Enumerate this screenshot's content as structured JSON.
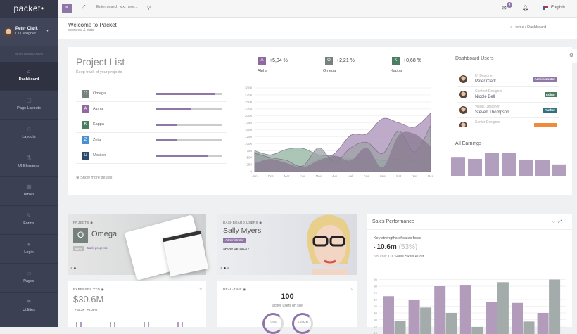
{
  "app": {
    "logo": "packet•"
  },
  "user": {
    "name": "Peter Clark",
    "role": "UI Designer"
  },
  "sidebar": {
    "section": "MAIN NAVIGATION",
    "items": [
      {
        "label": "Dashboard",
        "icon": "⌂",
        "active": true
      },
      {
        "label": "Page Layouts",
        "icon": "▢"
      },
      {
        "label": "Layouts",
        "icon": "◇"
      },
      {
        "label": "UI Elements",
        "icon": "⚗"
      },
      {
        "label": "Tables",
        "icon": "▦"
      },
      {
        "label": "Forms",
        "icon": "✎"
      },
      {
        "label": "Login",
        "icon": "●"
      },
      {
        "label": "Pages",
        "icon": "▭"
      },
      {
        "label": "Utilities",
        "icon": "☂"
      }
    ]
  },
  "topbar": {
    "search_placeholder": "Enter search text here...",
    "mail_count": "4",
    "language": "English"
  },
  "header": {
    "title": "Welcome to Packet",
    "subtitle": "overview & stats",
    "breadcrumb": [
      "Home",
      "Dashboard"
    ]
  },
  "project_list": {
    "title": "Project List",
    "subtitle": "Keep track of your projects",
    "show_more": "Show more details",
    "projects": [
      {
        "letter": "O",
        "name": "Omega",
        "color": "#76807d",
        "progress": 0.88
      },
      {
        "letter": "A",
        "name": "Alpha",
        "color": "#8f6a9e",
        "progress": 0.53
      },
      {
        "letter": "K",
        "name": "Kappa",
        "color": "#4b7d63",
        "progress": 0.32
      },
      {
        "letter": "Z",
        "name": "Zeta",
        "color": "#4a90cf",
        "progress": 0.32
      },
      {
        "letter": "U",
        "name": "Upsilon",
        "color": "#2c4a6e",
        "progress": 0.78
      }
    ]
  },
  "stats": [
    {
      "letter": "A",
      "value": "+5,04 %",
      "name": "Alpha",
      "color": "#8f6a9e"
    },
    {
      "letter": "O",
      "value": "+2,21 %",
      "name": "Omega",
      "color": "#76807d"
    },
    {
      "letter": "K",
      "value": "+0,68 %",
      "name": "Kappa",
      "color": "#4b7d63"
    }
  ],
  "chart_data": [
    {
      "type": "area",
      "categories": [
        "Jan",
        "Feb",
        "Mar",
        "Apr",
        "May",
        "Jun",
        "Jul",
        "Aug",
        "Sep",
        "Oct",
        "Nov",
        "Dec"
      ],
      "ylim": [
        0,
        3000
      ],
      "yticks": [
        0,
        250,
        500,
        750,
        1000,
        1250,
        1500,
        1750,
        2000,
        2250,
        2500,
        2750,
        3000
      ],
      "grid": true,
      "series": [
        {
          "color": "#b7a1c3",
          "values": [
            700,
            450,
            300,
            200,
            450,
            650,
            1300,
            1350,
            1900,
            1750,
            1600,
            2100
          ]
        },
        {
          "color": "#8fb39f",
          "values": [
            750,
            600,
            800,
            830,
            600,
            550,
            450,
            500,
            400,
            450,
            400,
            500
          ]
        },
        {
          "color": "#9da3a5",
          "values": [
            650,
            500,
            400,
            200,
            850,
            350,
            850,
            1050,
            650,
            1450,
            700,
            1650
          ]
        },
        {
          "color": "#8a7a92",
          "values": [
            300,
            450,
            300,
            150,
            400,
            550,
            400,
            850,
            150,
            1300,
            1350,
            900
          ]
        }
      ]
    },
    {
      "type": "bar",
      "title": "All Earnings",
      "values": [
        78,
        70,
        96,
        96,
        67,
        66,
        47
      ],
      "color": "#b29fbe"
    },
    {
      "type": "bar",
      "ylim": [
        0,
        90
      ],
      "yticks": [
        10,
        20,
        30,
        40,
        50,
        60,
        70,
        80,
        90
      ],
      "grid": true,
      "series": [
        {
          "color": "#b29bbb",
          "values": [
            65,
            59,
            80,
            81,
            56,
            55,
            40
          ]
        },
        {
          "color": "#a3abab",
          "values": [
            28,
            48,
            40,
            19,
            86,
            27,
            90
          ]
        }
      ]
    }
  ],
  "dashboard_users": {
    "title": "Dashboard Users",
    "users": [
      {
        "role": "UI Designer",
        "name": "Peter Clark",
        "badge": "Administrator",
        "color": "#8f76a8"
      },
      {
        "role": "Content Designer",
        "name": "Nicole Bell",
        "badge": "Editor",
        "color": "#4b7d63"
      },
      {
        "role": "Visual Designer",
        "name": "Steven Thompson",
        "badge": "Author",
        "color": "#35707d"
      },
      {
        "role": "Senior Designer",
        "name": "",
        "badge": "",
        "color": "#f08a3c"
      }
    ]
  },
  "earnings": {
    "title": "All Earnings"
  },
  "projects_card": {
    "label": "PRJECTS ◉",
    "letter": "O",
    "name": "Omega",
    "percent": "65%",
    "link": "track progress"
  },
  "users_card": {
    "label": "DASHBOARD USERS ◉",
    "name": "Sally Myers",
    "badge": "Administrator",
    "show": "SHOW DETAILS ›"
  },
  "sales": {
    "title": "Sales Performance",
    "key": "Key strengths of sales force",
    "value": "10.6m",
    "pct": "(53%)",
    "source_label": "Source:",
    "source": "CT Sales Skills Audit"
  },
  "expenses": {
    "label": "EXPENSES YTD ◉",
    "value": "$30.6M",
    "delta1": "+15.3K",
    "delta2": "+0.05%"
  },
  "realtime": {
    "label": "REAL-TIME ◉",
    "count": "100",
    "sub": "active users on site",
    "donut1": "65%",
    "donut2": "330MB"
  }
}
